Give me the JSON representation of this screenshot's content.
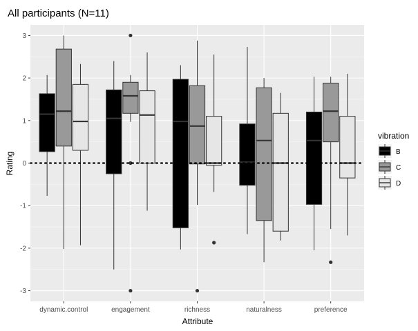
{
  "chart_data": {
    "type": "boxplot",
    "title": "All participants (N=11)",
    "xlabel": "Attribute",
    "ylabel": "Rating",
    "ylim": [
      -3.25,
      3.25
    ],
    "yticks": [
      -3,
      -2,
      -1,
      0,
      1,
      2,
      3
    ],
    "categories": [
      "dynamic.control",
      "engagement",
      "richness",
      "naturalness",
      "preference"
    ],
    "panel_background": "#ebebeb",
    "grid": true,
    "reference_line": {
      "y": 0,
      "style": "dotted",
      "color": "#000000"
    },
    "legend": {
      "title": "vibration",
      "placement": "right"
    },
    "series": [
      {
        "name": "B",
        "color": "#000000",
        "boxes": [
          {
            "category": "dynamic.control",
            "lower_whisker": -0.77,
            "q1": 0.27,
            "median": 1.15,
            "q3": 1.63,
            "upper_whisker": 2.07,
            "outliers": []
          },
          {
            "category": "engagement",
            "lower_whisker": -2.5,
            "q1": -0.25,
            "median": 1.05,
            "q3": 1.72,
            "upper_whisker": 2.4,
            "outliers": []
          },
          {
            "category": "richness",
            "lower_whisker": -2.03,
            "q1": -1.52,
            "median": 0.98,
            "q3": 1.97,
            "upper_whisker": 2.3,
            "outliers": []
          },
          {
            "category": "naturalness",
            "lower_whisker": -1.67,
            "q1": -0.52,
            "median": 0.02,
            "q3": 0.92,
            "upper_whisker": 2.73,
            "outliers": []
          },
          {
            "category": "preference",
            "lower_whisker": -2.05,
            "q1": -0.97,
            "median": 0.53,
            "q3": 1.2,
            "upper_whisker": 2.03,
            "outliers": []
          }
        ]
      },
      {
        "name": "C",
        "color": "#999999",
        "boxes": [
          {
            "category": "dynamic.control",
            "lower_whisker": -2.02,
            "q1": 0.4,
            "median": 1.22,
            "q3": 2.68,
            "upper_whisker": 3.0,
            "outliers": []
          },
          {
            "category": "engagement",
            "lower_whisker": 0.97,
            "q1": 1.17,
            "median": 1.58,
            "q3": 1.9,
            "upper_whisker": 2.07,
            "outliers": [
              3.0,
              0.0,
              -3.0
            ]
          },
          {
            "category": "richness",
            "lower_whisker": -0.98,
            "q1": -0.02,
            "median": 0.87,
            "q3": 1.82,
            "upper_whisker": 2.88,
            "outliers": [
              -3.0
            ]
          },
          {
            "category": "naturalness",
            "lower_whisker": -2.33,
            "q1": -1.35,
            "median": 0.53,
            "q3": 1.77,
            "upper_whisker": 2.0,
            "outliers": []
          },
          {
            "category": "preference",
            "lower_whisker": -1.55,
            "q1": 0.5,
            "median": 1.22,
            "q3": 1.88,
            "upper_whisker": 2.03,
            "outliers": [
              -2.33
            ]
          }
        ]
      },
      {
        "name": "D",
        "color": "#e6e6e6",
        "boxes": [
          {
            "category": "dynamic.control",
            "lower_whisker": -1.93,
            "q1": 0.3,
            "median": 0.98,
            "q3": 1.85,
            "upper_whisker": 2.33,
            "outliers": []
          },
          {
            "category": "engagement",
            "lower_whisker": -1.12,
            "q1": 0.0,
            "median": 1.13,
            "q3": 1.7,
            "upper_whisker": 2.6,
            "outliers": []
          },
          {
            "category": "richness",
            "lower_whisker": -0.68,
            "q1": -0.05,
            "median": 0.0,
            "q3": 1.1,
            "upper_whisker": 2.55,
            "outliers": [
              -1.87
            ]
          },
          {
            "category": "naturalness",
            "lower_whisker": -1.82,
            "q1": -1.6,
            "median": 0.0,
            "q3": 1.17,
            "upper_whisker": 1.65,
            "outliers": []
          },
          {
            "category": "preference",
            "lower_whisker": -1.7,
            "q1": -0.35,
            "median": 0.0,
            "q3": 1.1,
            "upper_whisker": 2.1,
            "outliers": []
          }
        ]
      }
    ]
  }
}
